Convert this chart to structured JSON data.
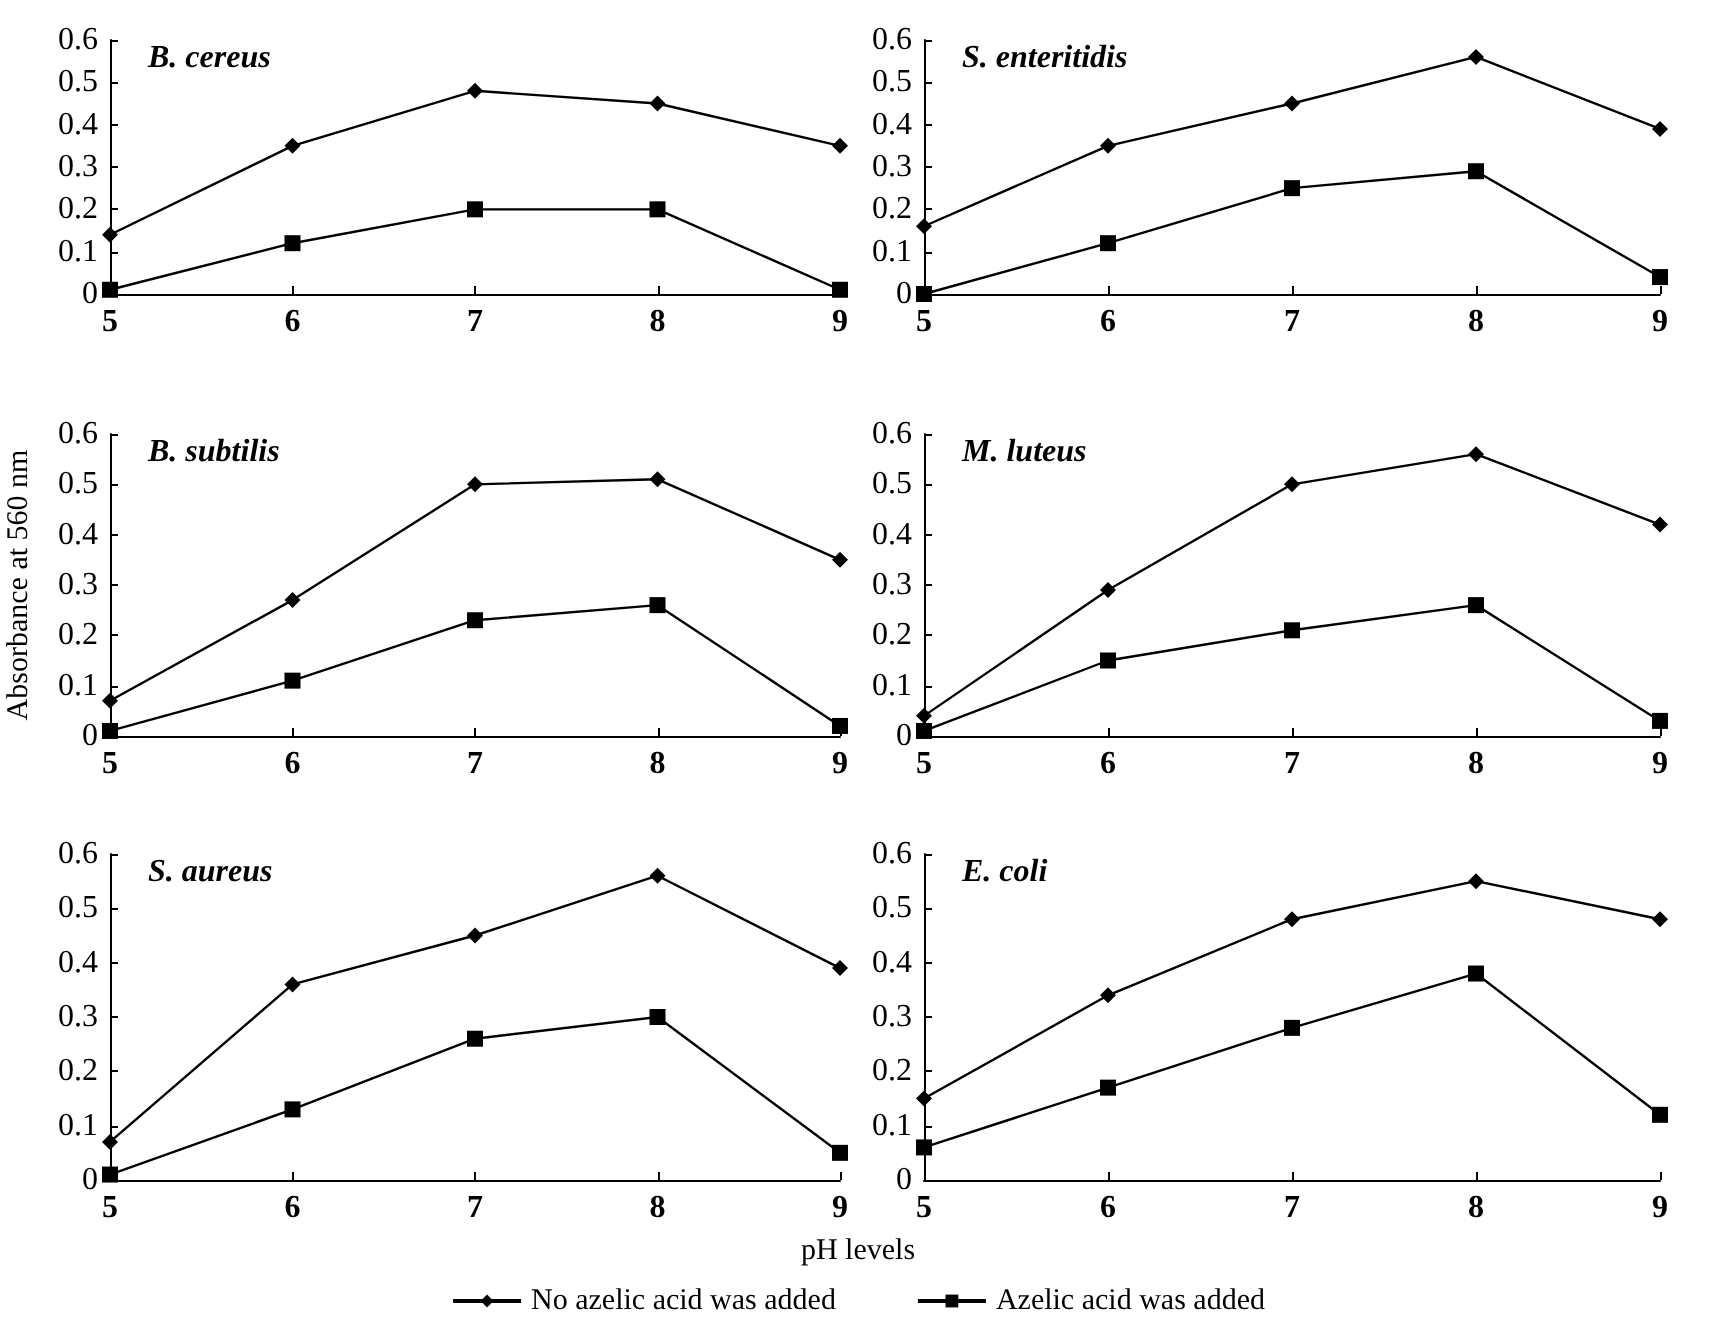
{
  "chart_data": [
    {
      "type": "line",
      "title": "B. cereus",
      "x": [
        5,
        6,
        7,
        8,
        9
      ],
      "xlim": [
        5,
        9
      ],
      "xticks": [
        5,
        6,
        7,
        8,
        9
      ],
      "ylim": [
        0,
        0.6
      ],
      "yticks": [
        0,
        0.1,
        0.2,
        0.3,
        0.4,
        0.5,
        0.6
      ],
      "grid": false,
      "legend": "bottom",
      "series": [
        {
          "name": "No azelic acid was added",
          "color": "#000000",
          "marker": "diamond",
          "values": [
            0.14,
            0.35,
            0.48,
            0.45,
            0.35
          ]
        },
        {
          "name": "Azelic acid was added",
          "color": "#000000",
          "marker": "square",
          "values": [
            0.01,
            0.12,
            0.2,
            0.2,
            0.01
          ]
        }
      ]
    },
    {
      "type": "line",
      "title": "S. enteritidis",
      "x": [
        5,
        6,
        7,
        8,
        9
      ],
      "xlim": [
        5,
        9
      ],
      "xticks": [
        5,
        6,
        7,
        8,
        9
      ],
      "ylim": [
        0,
        0.6
      ],
      "yticks": [
        0,
        0.1,
        0.2,
        0.3,
        0.4,
        0.5,
        0.6
      ],
      "grid": false,
      "series": [
        {
          "name": "No azelic acid was added",
          "color": "#000000",
          "marker": "diamond",
          "values": [
            0.16,
            0.35,
            0.45,
            0.56,
            0.39
          ]
        },
        {
          "name": "Azelic acid was added",
          "color": "#000000",
          "marker": "square",
          "values": [
            0.0,
            0.12,
            0.25,
            0.29,
            0.04
          ]
        }
      ]
    },
    {
      "type": "line",
      "title": "B. subtilis",
      "ylabel": "Absorbance at 560 nm",
      "x": [
        5,
        6,
        7,
        8,
        9
      ],
      "xlim": [
        5,
        9
      ],
      "xticks": [
        5,
        6,
        7,
        8,
        9
      ],
      "ylim": [
        0,
        0.6
      ],
      "yticks": [
        0,
        0.1,
        0.2,
        0.3,
        0.4,
        0.5,
        0.6
      ],
      "grid": false,
      "series": [
        {
          "name": "No azelic acid was added",
          "color": "#000000",
          "marker": "diamond",
          "values": [
            0.07,
            0.27,
            0.5,
            0.51,
            0.35
          ]
        },
        {
          "name": "Azelic acid was added",
          "color": "#000000",
          "marker": "square",
          "values": [
            0.01,
            0.11,
            0.23,
            0.26,
            0.02
          ]
        }
      ]
    },
    {
      "type": "line",
      "title": "M. luteus",
      "x": [
        5,
        6,
        7,
        8,
        9
      ],
      "xlim": [
        5,
        9
      ],
      "xticks": [
        5,
        6,
        7,
        8,
        9
      ],
      "ylim": [
        0,
        0.6
      ],
      "yticks": [
        0,
        0.1,
        0.2,
        0.3,
        0.4,
        0.5,
        0.6
      ],
      "grid": false,
      "series": [
        {
          "name": "No azelic acid was added",
          "color": "#000000",
          "marker": "diamond",
          "values": [
            0.04,
            0.29,
            0.5,
            0.56,
            0.42
          ]
        },
        {
          "name": "Azelic acid was added",
          "color": "#000000",
          "marker": "square",
          "values": [
            0.01,
            0.15,
            0.21,
            0.26,
            0.03
          ]
        }
      ]
    },
    {
      "type": "line",
      "title": "S. aureus",
      "xlabel": "pH levels",
      "x": [
        5,
        6,
        7,
        8,
        9
      ],
      "xlim": [
        5,
        9
      ],
      "xticks": [
        5,
        6,
        7,
        8,
        9
      ],
      "ylim": [
        0,
        0.6
      ],
      "yticks": [
        0,
        0.1,
        0.2,
        0.3,
        0.4,
        0.5,
        0.6
      ],
      "grid": false,
      "series": [
        {
          "name": "No azelic acid was added",
          "color": "#000000",
          "marker": "diamond",
          "values": [
            0.07,
            0.36,
            0.45,
            0.56,
            0.39
          ]
        },
        {
          "name": "Azelic acid was added",
          "color": "#000000",
          "marker": "square",
          "values": [
            0.01,
            0.13,
            0.26,
            0.3,
            0.05
          ]
        }
      ]
    },
    {
      "type": "line",
      "title": "E. coli",
      "x": [
        5,
        6,
        7,
        8,
        9
      ],
      "xlim": [
        5,
        9
      ],
      "xticks": [
        5,
        6,
        7,
        8,
        9
      ],
      "ylim": [
        0,
        0.6
      ],
      "yticks": [
        0,
        0.1,
        0.2,
        0.3,
        0.4,
        0.5,
        0.6
      ],
      "grid": false,
      "series": [
        {
          "name": "No azelic acid was added",
          "color": "#000000",
          "marker": "diamond",
          "values": [
            0.15,
            0.34,
            0.48,
            0.55,
            0.48
          ]
        },
        {
          "name": "Azelic acid was added",
          "color": "#000000",
          "marker": "square",
          "values": [
            0.06,
            0.17,
            0.28,
            0.38,
            0.12
          ]
        }
      ]
    }
  ]
}
